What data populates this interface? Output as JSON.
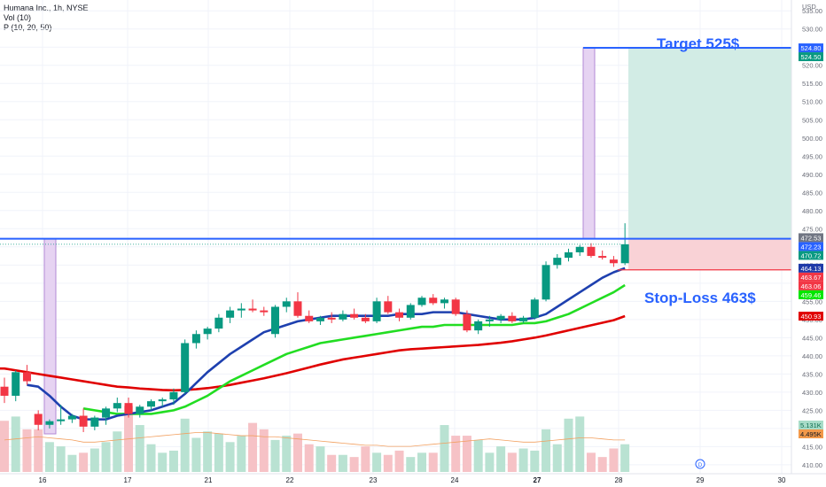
{
  "legend": {
    "symbol": "Humana Inc., 1h, NYSE",
    "vol": "Vol (10)",
    "indicator": "P (10, 20, 50)"
  },
  "axis": {
    "currency": "USD"
  },
  "chart_data": {
    "type": "candlestick",
    "ylim": [
      409,
      537
    ],
    "yticks": [
      410,
      415,
      420,
      425,
      430,
      435,
      440,
      445,
      450,
      455,
      460,
      465,
      470,
      475,
      480,
      485,
      490,
      495,
      500,
      505,
      510,
      515,
      520,
      525,
      530,
      535
    ],
    "xticks": [
      "16",
      "16",
      "17",
      "21",
      "22",
      "23",
      "24",
      "27",
      "28",
      "29",
      "30"
    ],
    "candles": [
      {
        "o": 431.5,
        "h": 434.0,
        "l": 427.0,
        "c": 429.0
      },
      {
        "o": 429.0,
        "h": 436.0,
        "l": 427.5,
        "c": 435.5
      },
      {
        "o": 435.5,
        "h": 437.5,
        "l": 432.0,
        "c": 433.0
      },
      {
        "o": 424.0,
        "h": 425.0,
        "l": 419.5,
        "c": 421.0
      },
      {
        "o": 421.0,
        "h": 422.5,
        "l": 420.0,
        "c": 422.0
      },
      {
        "o": 422.0,
        "h": 426.5,
        "l": 421.0,
        "c": 422.5
      },
      {
        "o": 422.5,
        "h": 424.0,
        "l": 421.5,
        "c": 423.5
      },
      {
        "o": 423.5,
        "h": 425.5,
        "l": 419.0,
        "c": 420.5
      },
      {
        "o": 420.5,
        "h": 423.5,
        "l": 419.5,
        "c": 423.0
      },
      {
        "o": 423.0,
        "h": 426.0,
        "l": 421.0,
        "c": 425.5
      },
      {
        "o": 425.5,
        "h": 428.5,
        "l": 424.5,
        "c": 427.0
      },
      {
        "o": 427.0,
        "h": 428.5,
        "l": 423.0,
        "c": 424.0
      },
      {
        "o": 424.0,
        "h": 426.5,
        "l": 423.0,
        "c": 426.0
      },
      {
        "o": 426.0,
        "h": 428.0,
        "l": 425.0,
        "c": 427.5
      },
      {
        "o": 427.5,
        "h": 428.5,
        "l": 426.0,
        "c": 428.0
      },
      {
        "o": 428.0,
        "h": 431.0,
        "l": 426.5,
        "c": 430.0
      },
      {
        "o": 430.0,
        "h": 444.5,
        "l": 429.5,
        "c": 443.5
      },
      {
        "o": 443.5,
        "h": 447.0,
        "l": 442.0,
        "c": 446.0
      },
      {
        "o": 446.0,
        "h": 448.0,
        "l": 444.5,
        "c": 447.5
      },
      {
        "o": 447.5,
        "h": 451.5,
        "l": 446.5,
        "c": 450.5
      },
      {
        "o": 450.5,
        "h": 453.5,
        "l": 449.0,
        "c": 452.5
      },
      {
        "o": 452.5,
        "h": 454.5,
        "l": 450.5,
        "c": 453.0
      },
      {
        "o": 453.0,
        "h": 455.5,
        "l": 452.0,
        "c": 452.5
      },
      {
        "o": 452.5,
        "h": 453.5,
        "l": 451.0,
        "c": 452.0
      },
      {
        "o": 446.0,
        "h": 454.0,
        "l": 445.0,
        "c": 453.5
      },
      {
        "o": 453.5,
        "h": 456.0,
        "l": 452.0,
        "c": 455.0
      },
      {
        "o": 455.0,
        "h": 457.5,
        "l": 450.5,
        "c": 451.0
      },
      {
        "o": 451.0,
        "h": 452.5,
        "l": 449.0,
        "c": 449.5
      },
      {
        "o": 449.5,
        "h": 451.0,
        "l": 448.5,
        "c": 450.5
      },
      {
        "o": 450.5,
        "h": 452.0,
        "l": 449.0,
        "c": 450.0
      },
      {
        "o": 450.0,
        "h": 452.5,
        "l": 449.5,
        "c": 451.5
      },
      {
        "o": 451.5,
        "h": 453.0,
        "l": 450.0,
        "c": 450.5
      },
      {
        "o": 450.5,
        "h": 451.5,
        "l": 449.0,
        "c": 449.5
      },
      {
        "o": 449.5,
        "h": 456.0,
        "l": 449.0,
        "c": 455.0
      },
      {
        "o": 455.0,
        "h": 456.5,
        "l": 451.5,
        "c": 452.0
      },
      {
        "o": 452.0,
        "h": 453.0,
        "l": 449.5,
        "c": 450.5
      },
      {
        "o": 450.5,
        "h": 454.5,
        "l": 450.0,
        "c": 454.0
      },
      {
        "o": 454.0,
        "h": 456.5,
        "l": 453.5,
        "c": 456.0
      },
      {
        "o": 456.0,
        "h": 457.0,
        "l": 454.0,
        "c": 454.5
      },
      {
        "o": 454.5,
        "h": 456.0,
        "l": 453.0,
        "c": 455.5
      },
      {
        "o": 455.5,
        "h": 456.0,
        "l": 451.0,
        "c": 451.5
      },
      {
        "o": 451.5,
        "h": 452.5,
        "l": 446.5,
        "c": 447.0
      },
      {
        "o": 447.0,
        "h": 450.0,
        "l": 446.0,
        "c": 449.5
      },
      {
        "o": 449.5,
        "h": 451.0,
        "l": 448.0,
        "c": 450.0
      },
      {
        "o": 450.0,
        "h": 451.5,
        "l": 449.0,
        "c": 451.0
      },
      {
        "o": 451.0,
        "h": 452.0,
        "l": 449.0,
        "c": 449.5
      },
      {
        "o": 449.5,
        "h": 451.0,
        "l": 449.0,
        "c": 450.5
      },
      {
        "o": 450.5,
        "h": 456.0,
        "l": 450.0,
        "c": 455.5
      },
      {
        "o": 455.5,
        "h": 466.0,
        "l": 455.0,
        "c": 465.0
      },
      {
        "o": 465.0,
        "h": 468.0,
        "l": 464.0,
        "c": 467.0
      },
      {
        "o": 467.0,
        "h": 469.5,
        "l": 466.0,
        "c": 468.5
      },
      {
        "o": 468.5,
        "h": 470.5,
        "l": 467.5,
        "c": 470.0
      },
      {
        "o": 470.0,
        "h": 471.0,
        "l": 467.0,
        "c": 467.5
      },
      {
        "o": 467.5,
        "h": 469.0,
        "l": 466.5,
        "c": 467.0
      },
      {
        "o": 466.5,
        "h": 467.5,
        "l": 464.5,
        "c": 465.5
      },
      {
        "o": 465.5,
        "h": 476.5,
        "l": 465.0,
        "c": 470.72
      }
    ],
    "volume": [
      24,
      26,
      20,
      20,
      14,
      12,
      8,
      9,
      11,
      14,
      19,
      31,
      22,
      13,
      9,
      10,
      25,
      16,
      19,
      18,
      14,
      17,
      23,
      20,
      15,
      17,
      18,
      13,
      12,
      8,
      8,
      7,
      12,
      9,
      8,
      10,
      7,
      9,
      9,
      22,
      17,
      17,
      15,
      9,
      12,
      9,
      11,
      10,
      20,
      13,
      25,
      26,
      9,
      7,
      11,
      13
    ],
    "vol_ma": [
      15,
      15.5,
      16,
      16.5,
      16,
      15.5,
      15,
      14,
      14,
      14.5,
      15,
      15.5,
      16,
      16.5,
      17,
      17.5,
      18,
      18.5,
      18.5,
      18,
      17.5,
      17,
      17,
      16.5,
      16.5,
      16,
      15.5,
      15,
      14.5,
      14,
      13.5,
      13,
      12.5,
      12.5,
      12,
      12,
      12,
      12.5,
      13,
      13.5,
      14,
      14.5,
      15,
      15.5,
      15,
      14.5,
      14,
      14,
      14.5,
      15,
      15.5,
      16,
      16,
      15.5,
      15,
      15
    ],
    "vol_scale_max": 54,
    "ma10": [
      null,
      null,
      432.0,
      431.5,
      429.0,
      426.0,
      423.5,
      422.5,
      422.5,
      422.5,
      423.5,
      424.0,
      424.5,
      425.0,
      426.0,
      427.0,
      429.5,
      432.5,
      435.5,
      438.0,
      440.5,
      442.5,
      444.5,
      446.5,
      447.5,
      448.5,
      449.5,
      450.0,
      450.5,
      451.0,
      451.0,
      451.0,
      451.0,
      451.0,
      451.0,
      451.5,
      451.5,
      451.5,
      452.0,
      452.0,
      452.0,
      451.5,
      451.0,
      450.5,
      450.0,
      450.0,
      450.0,
      450.5,
      451.5,
      453.5,
      455.5,
      457.5,
      459.5,
      461.5,
      463.0,
      464.13
    ],
    "ma20": [
      null,
      null,
      null,
      null,
      null,
      null,
      null,
      425.5,
      425.0,
      424.5,
      424.0,
      424.0,
      424.0,
      424.0,
      424.5,
      425.0,
      426.0,
      427.5,
      429.0,
      431.0,
      433.0,
      434.5,
      436.0,
      437.5,
      439.0,
      440.5,
      441.5,
      442.5,
      443.5,
      444.0,
      444.5,
      445.0,
      445.5,
      446.0,
      446.5,
      447.0,
      447.5,
      448.0,
      448.0,
      448.5,
      448.5,
      448.5,
      448.5,
      448.5,
      448.5,
      448.5,
      449.0,
      449.0,
      449.5,
      450.5,
      451.5,
      453.0,
      454.5,
      456.0,
      457.5,
      459.46
    ],
    "ma50": [
      436.5,
      436.0,
      435.5,
      435.0,
      434.5,
      434.0,
      433.5,
      433.0,
      432.5,
      432.0,
      431.5,
      431.3,
      431.0,
      430.8,
      430.6,
      430.5,
      430.6,
      430.8,
      431.1,
      431.5,
      432.0,
      432.6,
      433.2,
      433.8,
      434.5,
      435.2,
      436.0,
      436.8,
      437.6,
      438.3,
      439.0,
      439.5,
      440.0,
      440.5,
      441.0,
      441.5,
      441.8,
      442.0,
      442.2,
      442.4,
      442.6,
      442.8,
      443.0,
      443.3,
      443.6,
      444.0,
      444.5,
      445.0,
      445.6,
      446.3,
      447.0,
      447.7,
      448.4,
      449.1,
      449.8,
      450.93
    ],
    "target_price": 524.8,
    "entry_price": 472.23,
    "stop_price": 463.67,
    "price_tags": [
      {
        "value": 524.8,
        "label": "524.80",
        "color": "#2962ff"
      },
      {
        "value": 524.5,
        "label": "524.50",
        "color": "#089981"
      },
      {
        "value": 472.53,
        "label": "472.53",
        "color": "#707583"
      },
      {
        "value": 472.23,
        "label": "472.23",
        "color": "#2962ff"
      },
      {
        "value": 470.72,
        "label": "470.72",
        "color": "#089981"
      },
      {
        "value": 464.13,
        "label": "464.13",
        "color": "#1e3aa8"
      },
      {
        "value": 463.67,
        "label": "463.67",
        "color": "#f23645"
      },
      {
        "value": 463.06,
        "label": "463.06",
        "color": "#f23645"
      },
      {
        "value": 459.46,
        "label": "459.46",
        "color": "#00e600"
      },
      {
        "value": 450.93,
        "label": "450.93",
        "color": "#e00000"
      }
    ],
    "vol_tags": [
      {
        "label": "5.131K",
        "color": "#a8dcc8",
        "text": "#0b6b4d"
      },
      {
        "label": "4.495K",
        "color": "#f2994a",
        "text": "#131722"
      }
    ],
    "annotations": {
      "target": "Target 525$",
      "stop": "Stop-Loss 463$"
    },
    "colors": {
      "up": "#089981",
      "down": "#f23645",
      "ma10": "#1e40af",
      "ma20": "#22dd22",
      "ma50": "#e00000",
      "target_zone": "#d2ece5",
      "stop_zone": "#f9d2d6",
      "highlight": "#e6d3f2",
      "highlight_border": "#b38ad6",
      "hline": "#2962ff",
      "vol_up": "#b9e2d2",
      "vol_down": "#f6c2c6",
      "vol_ma": "#f2a060"
    }
  }
}
